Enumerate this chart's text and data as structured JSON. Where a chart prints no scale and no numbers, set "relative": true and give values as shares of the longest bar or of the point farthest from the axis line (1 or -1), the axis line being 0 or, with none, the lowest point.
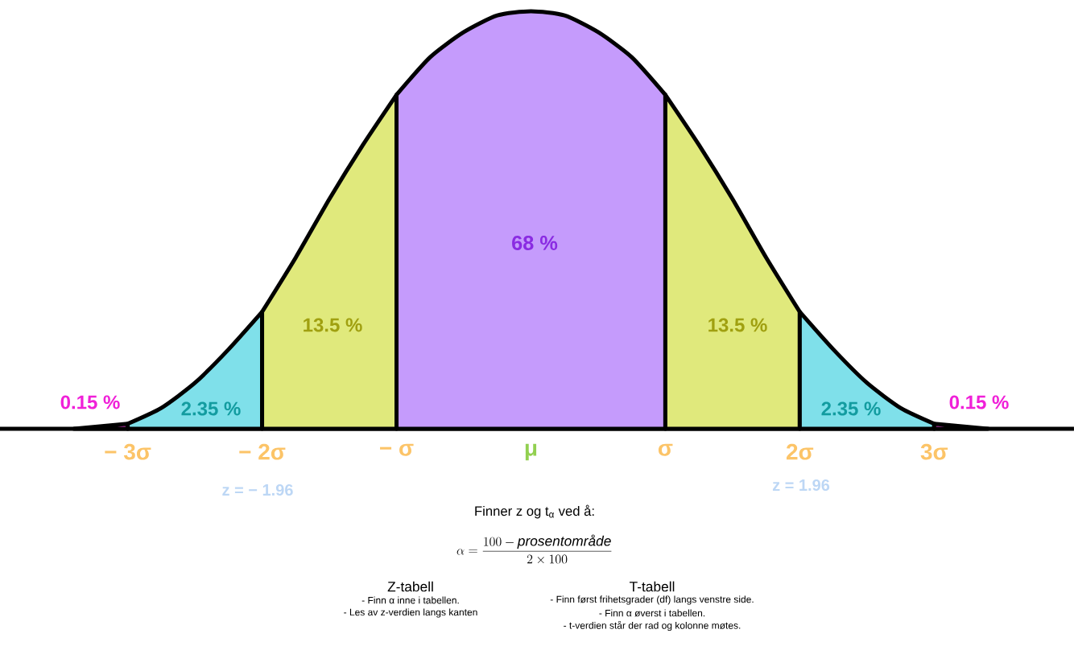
{
  "chart_data": {
    "type": "area",
    "relative": true,
    "xlim": [
      -3.95,
      4.04
    ],
    "xticks": [
      {
        "value": -3,
        "label": "− 3σ"
      },
      {
        "value": -2,
        "label": "− 2σ"
      },
      {
        "value": -1,
        "label": "− σ"
      },
      {
        "value": 0,
        "label": "μ"
      },
      {
        "value": 1,
        "label": "σ"
      },
      {
        "value": 2,
        "label": "2σ"
      },
      {
        "value": 3,
        "label": "3σ"
      }
    ],
    "series": [
      {
        "color": "#f03fdc",
        "x": [
          -3.4,
          -3
        ],
        "values": [
          0,
          0.012
        ]
      },
      {
        "color": "#7fe0ea",
        "x": [
          -3,
          -2.75,
          -2.5,
          -2.25,
          -2
        ],
        "values": [
          0.012,
          0.05,
          0.11,
          0.19,
          0.28
        ]
      },
      {
        "color": "#e0e97c",
        "x": [
          -2,
          -1.75,
          -1.5,
          -1.25,
          -1
        ],
        "values": [
          0.28,
          0.41,
          0.55,
          0.68,
          0.8
        ]
      },
      {
        "color": "#c59bfc",
        "x": [
          -1,
          -0.75,
          -0.5,
          -0.25,
          0,
          0.25,
          0.5,
          0.75,
          1
        ],
        "values": [
          0.8,
          0.89,
          0.95,
          0.99,
          1,
          0.99,
          0.95,
          0.89,
          0.8
        ]
      },
      {
        "color": "#e0e97c",
        "x": [
          1,
          1.25,
          1.5,
          1.75,
          2
        ],
        "values": [
          0.8,
          0.68,
          0.55,
          0.41,
          0.28
        ]
      },
      {
        "color": "#7fe0ea",
        "x": [
          2,
          2.25,
          2.5,
          2.75,
          3
        ],
        "values": [
          0.28,
          0.19,
          0.11,
          0.05,
          0.012
        ]
      },
      {
        "color": "#f03fdc",
        "x": [
          3,
          3.4
        ],
        "values": [
          0.012,
          0
        ]
      }
    ],
    "annotations": [
      "0.15 %",
      "2.35 %",
      "13.5 %",
      "68 %",
      "13.5 %",
      "2.35 %",
      "0.15 %",
      "z = − 1.96",
      "z = 1.96",
      "Finner z og t$_{α}$ ved å:",
      "\\alpha = \\frac{100 - \\textit{prosentområde}}{2 \\times 100}",
      "Z-tabell",
      "- Finn α inne i tabellen.",
      "- Les av z-verdien langs kanten",
      "T-tabell",
      "- Finn først frihetsgrader (df) langs venstre side.",
      "- Finn α øverst i tabellen.",
      "- t-verdien står der rad og kolonne møtes."
    ]
  }
}
